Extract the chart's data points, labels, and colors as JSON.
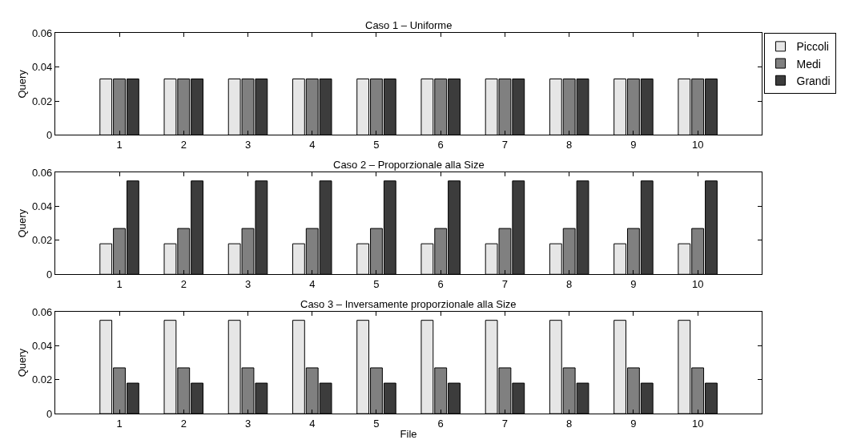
{
  "chart_data": [
    {
      "type": "bar",
      "title": "Caso 1 – Uniforme",
      "ylabel": "Query",
      "x": [
        1,
        2,
        3,
        4,
        5,
        6,
        7,
        8,
        9,
        10
      ],
      "xlim": [
        0,
        11
      ],
      "xticks": [
        1,
        2,
        3,
        4,
        5,
        6,
        7,
        8,
        9,
        10
      ],
      "ylim": [
        0,
        0.06
      ],
      "yticks": [
        0,
        0.02,
        0.04,
        0.06
      ],
      "legend": "top right",
      "series": [
        {
          "name": "Piccoli",
          "color": "#e6e6e6",
          "values": [
            0.033,
            0.033,
            0.033,
            0.033,
            0.033,
            0.033,
            0.033,
            0.033,
            0.033,
            0.033
          ]
        },
        {
          "name": "Medi",
          "color": "#808080",
          "values": [
            0.033,
            0.033,
            0.033,
            0.033,
            0.033,
            0.033,
            0.033,
            0.033,
            0.033,
            0.033
          ]
        },
        {
          "name": "Grandi",
          "color": "#3c3c3c",
          "values": [
            0.033,
            0.033,
            0.033,
            0.033,
            0.033,
            0.033,
            0.033,
            0.033,
            0.033,
            0.033
          ]
        }
      ]
    },
    {
      "type": "bar",
      "title": "Caso 2 – Proporzionale alla Size",
      "ylabel": "Query",
      "x": [
        1,
        2,
        3,
        4,
        5,
        6,
        7,
        8,
        9,
        10
      ],
      "xlim": [
        0,
        11
      ],
      "xticks": [
        1,
        2,
        3,
        4,
        5,
        6,
        7,
        8,
        9,
        10
      ],
      "ylim": [
        0,
        0.06
      ],
      "yticks": [
        0,
        0.02,
        0.04,
        0.06
      ],
      "series": [
        {
          "color": "#e6e6e6",
          "values": [
            0.018,
            0.018,
            0.018,
            0.018,
            0.018,
            0.018,
            0.018,
            0.018,
            0.018,
            0.018
          ]
        },
        {
          "color": "#808080",
          "values": [
            0.027,
            0.027,
            0.027,
            0.027,
            0.027,
            0.027,
            0.027,
            0.027,
            0.027,
            0.027
          ]
        },
        {
          "color": "#3c3c3c",
          "values": [
            0.055,
            0.055,
            0.055,
            0.055,
            0.055,
            0.055,
            0.055,
            0.055,
            0.055,
            0.055
          ]
        }
      ]
    },
    {
      "type": "bar",
      "title": "Caso 3 – Inversamente proporzionale alla Size",
      "ylabel": "Query",
      "xlabel": "File",
      "x": [
        1,
        2,
        3,
        4,
        5,
        6,
        7,
        8,
        9,
        10
      ],
      "xlim": [
        0,
        11
      ],
      "xticks": [
        1,
        2,
        3,
        4,
        5,
        6,
        7,
        8,
        9,
        10
      ],
      "ylim": [
        0,
        0.06
      ],
      "yticks": [
        0,
        0.02,
        0.04,
        0.06
      ],
      "series": [
        {
          "color": "#e6e6e6",
          "values": [
            0.055,
            0.055,
            0.055,
            0.055,
            0.055,
            0.055,
            0.055,
            0.055,
            0.055,
            0.055
          ]
        },
        {
          "color": "#808080",
          "values": [
            0.027,
            0.027,
            0.027,
            0.027,
            0.027,
            0.027,
            0.027,
            0.027,
            0.027,
            0.027
          ]
        },
        {
          "color": "#3c3c3c",
          "values": [
            0.018,
            0.018,
            0.018,
            0.018,
            0.018,
            0.018,
            0.018,
            0.018,
            0.018,
            0.018
          ]
        }
      ]
    }
  ]
}
